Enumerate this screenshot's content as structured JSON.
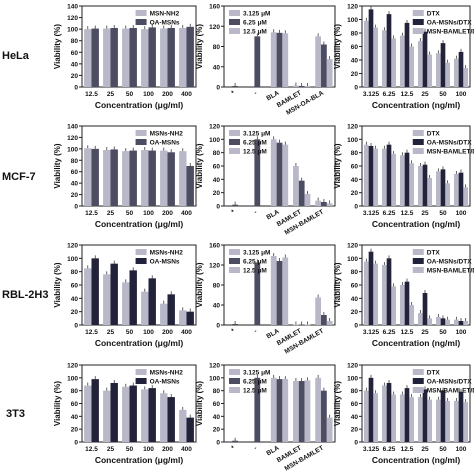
{
  "row_labels": [
    "HeLa",
    "MCF-7",
    "RBL-2H3",
    "3T3"
  ],
  "colors": {
    "light": "#b8b8c8",
    "mid": "#4d4d62",
    "dark": "#22223a",
    "frame": "#222222"
  },
  "chart_data": [
    {
      "type": "bar",
      "row": 0,
      "col": 0,
      "categories": [
        "12.5",
        "25",
        "50",
        "100",
        "200",
        "400"
      ],
      "xlabel": "Concentration (μg/ml)",
      "ylabel": "Viability (%)",
      "ylim": [
        0,
        140
      ],
      "yticks": [
        0,
        20,
        40,
        60,
        80,
        100,
        120,
        140
      ],
      "legend": "top-right",
      "series": [
        {
          "name": "MSN-NH2",
          "color": "light",
          "values": [
            100,
            101,
            101,
            100,
            101,
            102
          ]
        },
        {
          "name": "OA-MSNs",
          "color": "mid",
          "values": [
            101,
            102,
            102,
            103,
            102,
            104
          ]
        }
      ]
    },
    {
      "type": "bar",
      "row": 0,
      "col": 1,
      "categories": [
        "*",
        "-",
        "BLA",
        "BAMLET",
        "MSN-OA-BLA"
      ],
      "xlabel": "",
      "ylabel": "Viability (%)",
      "ylim": [
        0,
        160
      ],
      "yticks": [
        0,
        40,
        80,
        120,
        160
      ],
      "legend": "top-left",
      "series": [
        {
          "name": "3.125 μM",
          "color": "light",
          "values": [
            null,
            null,
            108,
            3,
            100
          ]
        },
        {
          "name": "6.25 μM",
          "color": "mid",
          "values": [
            2,
            100,
            107,
            2,
            84
          ]
        },
        {
          "name": "12.5 μM",
          "color": "light",
          "values": [
            null,
            null,
            106,
            2,
            55
          ]
        }
      ]
    },
    {
      "type": "bar",
      "row": 0,
      "col": 2,
      "categories": [
        "3.125",
        "6.25",
        "12.5",
        "25",
        "50",
        "100"
      ],
      "xlabel": "Concentration (ng/ml)",
      "ylabel": "Viability (%)",
      "ylim": [
        0,
        120
      ],
      "yticks": [
        0,
        20,
        40,
        60,
        80,
        100,
        120
      ],
      "legend": "top-right",
      "series": [
        {
          "name": "DTX",
          "color": "light",
          "values": [
            98,
            84,
            76,
            68,
            50,
            42
          ]
        },
        {
          "name": "OA-MSNs/DTX",
          "color": "dark",
          "values": [
            115,
            108,
            95,
            82,
            65,
            52
          ]
        },
        {
          "name": "MSN-BAMLET/DTX",
          "color": "light",
          "values": [
            88,
            72,
            60,
            48,
            36,
            28
          ]
        }
      ]
    },
    {
      "type": "bar",
      "row": 1,
      "col": 0,
      "categories": [
        "12.5",
        "25",
        "50",
        "100",
        "200",
        "400"
      ],
      "xlabel": "Concentration (μg/ml)",
      "ylabel": "Viability (%)",
      "ylim": [
        0,
        140
      ],
      "yticks": [
        0,
        20,
        40,
        60,
        80,
        100,
        120,
        140
      ],
      "legend": "top-right",
      "series": [
        {
          "name": "MSNs-NH2",
          "color": "light",
          "values": [
            101,
            98,
            96,
            98,
            97,
            96
          ]
        },
        {
          "name": "OA-MSNs",
          "color": "mid",
          "values": [
            100,
            99,
            97,
            97,
            94,
            70
          ]
        }
      ]
    },
    {
      "type": "bar",
      "row": 1,
      "col": 1,
      "categories": [
        "*",
        "-",
        "BLA",
        "BAMLET",
        "MSN-BAMLET"
      ],
      "xlabel": "",
      "ylabel": "Viability (%)",
      "ylim": [
        0,
        120
      ],
      "yticks": [
        0,
        20,
        40,
        60,
        80,
        100,
        120
      ],
      "legend": "top-left",
      "series": [
        {
          "name": "3.125 μM",
          "color": "light",
          "values": [
            null,
            null,
            100,
            60,
            8
          ]
        },
        {
          "name": "6.25 μM",
          "color": "mid",
          "values": [
            2,
            100,
            95,
            38,
            6
          ]
        },
        {
          "name": "12.5 μM",
          "color": "light",
          "values": [
            null,
            null,
            92,
            18,
            4
          ]
        }
      ]
    },
    {
      "type": "bar",
      "row": 1,
      "col": 2,
      "categories": [
        "3.125",
        "6.25",
        "12.5",
        "25",
        "50",
        "100"
      ],
      "xlabel": "Concentration (ng/ml)",
      "ylabel": "Viability (%)",
      "ylim": [
        0,
        120
      ],
      "yticks": [
        0,
        20,
        40,
        60,
        80,
        100,
        120
      ],
      "legend": "top-right",
      "series": [
        {
          "name": "DTX",
          "color": "light",
          "values": [
            92,
            86,
            76,
            60,
            52,
            48
          ]
        },
        {
          "name": "OA-MSNs/DTX",
          "color": "dark",
          "values": [
            90,
            92,
            80,
            62,
            55,
            50
          ]
        },
        {
          "name": "MSN-BAMLET/DTX",
          "color": "light",
          "values": [
            86,
            78,
            64,
            42,
            34,
            28
          ]
        }
      ]
    },
    {
      "type": "bar",
      "row": 2,
      "col": 0,
      "categories": [
        "12.5",
        "25",
        "50",
        "100",
        "200",
        "400"
      ],
      "xlabel": "Concentration (μg/ml)",
      "ylabel": "Viability (%)",
      "ylim": [
        0,
        120
      ],
      "yticks": [
        0,
        20,
        40,
        60,
        80,
        100,
        120
      ],
      "legend": "top-right",
      "series": [
        {
          "name": "MSNs-NH2",
          "color": "light",
          "values": [
            85,
            76,
            64,
            50,
            32,
            22
          ]
        },
        {
          "name": "OA-MSNs",
          "color": "dark",
          "values": [
            100,
            92,
            82,
            70,
            46,
            20
          ]
        }
      ]
    },
    {
      "type": "bar",
      "row": 2,
      "col": 1,
      "categories": [
        "*",
        "-",
        "BLA",
        "BAMLET",
        "MSN-BAMLET"
      ],
      "xlabel": "",
      "ylabel": "Viability (%)",
      "ylim": [
        0,
        160
      ],
      "yticks": [
        0,
        40,
        80,
        120,
        160
      ],
      "legend": "top-left",
      "series": [
        {
          "name": "3.125 μM",
          "color": "light",
          "values": [
            null,
            null,
            138,
            1,
            55
          ]
        },
        {
          "name": "6.25 μM",
          "color": "mid",
          "values": [
            2,
            125,
            128,
            1,
            20
          ]
        },
        {
          "name": "12.5 μM",
          "color": "light",
          "values": [
            null,
            null,
            135,
            1,
            8
          ]
        }
      ]
    },
    {
      "type": "bar",
      "row": 2,
      "col": 2,
      "categories": [
        "3.125",
        "6.25",
        "12.5",
        "25",
        "50",
        "100"
      ],
      "xlabel": "Concentration (ng/ml)",
      "ylabel": "Viability (%)",
      "ylim": [
        0,
        120
      ],
      "yticks": [
        0,
        20,
        40,
        60,
        80,
        100,
        120
      ],
      "legend": "top-right",
      "series": [
        {
          "name": "DTX",
          "color": "light",
          "values": [
            95,
            90,
            60,
            18,
            12,
            8
          ]
        },
        {
          "name": "OA-MSNs/DTX",
          "color": "dark",
          "values": [
            110,
            100,
            65,
            48,
            10,
            6
          ]
        },
        {
          "name": "MSN-BAMLET/DTX",
          "color": "light",
          "values": [
            92,
            58,
            30,
            10,
            8,
            6
          ]
        }
      ]
    },
    {
      "type": "bar",
      "row": 3,
      "col": 0,
      "categories": [
        "12.5",
        "25",
        "50",
        "100",
        "200",
        "400"
      ],
      "xlabel": "Concentration (μg/ml)",
      "ylabel": "Viability (%)",
      "ylim": [
        0,
        120
      ],
      "yticks": [
        0,
        20,
        40,
        60,
        80,
        100,
        120
      ],
      "legend": "top-right",
      "series": [
        {
          "name": "MSNs-NH2",
          "color": "light",
          "values": [
            88,
            80,
            86,
            82,
            76,
            50
          ]
        },
        {
          "name": "OA-MSNs",
          "color": "dark",
          "values": [
            98,
            92,
            88,
            84,
            70,
            38
          ]
        }
      ]
    },
    {
      "type": "bar",
      "row": 3,
      "col": 1,
      "categories": [
        "*",
        "-",
        "BLA",
        "BAMLET",
        "MSN-BAMLET"
      ],
      "xlabel": "",
      "ylabel": "Viability (%)",
      "ylim": [
        0,
        120
      ],
      "yticks": [
        0,
        20,
        40,
        60,
        80,
        100,
        120
      ],
      "legend": "top-left",
      "series": [
        {
          "name": "3.125 μM",
          "color": "light",
          "values": [
            null,
            null,
            100,
            95,
            100
          ]
        },
        {
          "name": "6.25 μM",
          "color": "mid",
          "values": [
            2,
            100,
            98,
            95,
            80
          ]
        },
        {
          "name": "12.5 μM",
          "color": "light",
          "values": [
            null,
            null,
            98,
            96,
            38
          ]
        }
      ]
    },
    {
      "type": "bar",
      "row": 3,
      "col": 2,
      "categories": [
        "3.125",
        "6.25",
        "12.5",
        "25",
        "50",
        "100"
      ],
      "xlabel": "Concentration (ng/ml)",
      "ylabel": "Viability (%)",
      "ylim": [
        0,
        120
      ],
      "yticks": [
        0,
        20,
        40,
        60,
        80,
        100,
        120
      ],
      "legend": "top-right",
      "series": [
        {
          "name": "DTX",
          "color": "light",
          "values": [
            80,
            88,
            74,
            70,
            66,
            64
          ]
        },
        {
          "name": "OA-MSNs/DTX",
          "color": "dark",
          "values": [
            100,
            92,
            84,
            82,
            80,
            78
          ]
        },
        {
          "name": "MSN-BAMLET/DTX",
          "color": "light",
          "values": [
            76,
            74,
            70,
            66,
            64,
            62
          ]
        }
      ]
    }
  ]
}
